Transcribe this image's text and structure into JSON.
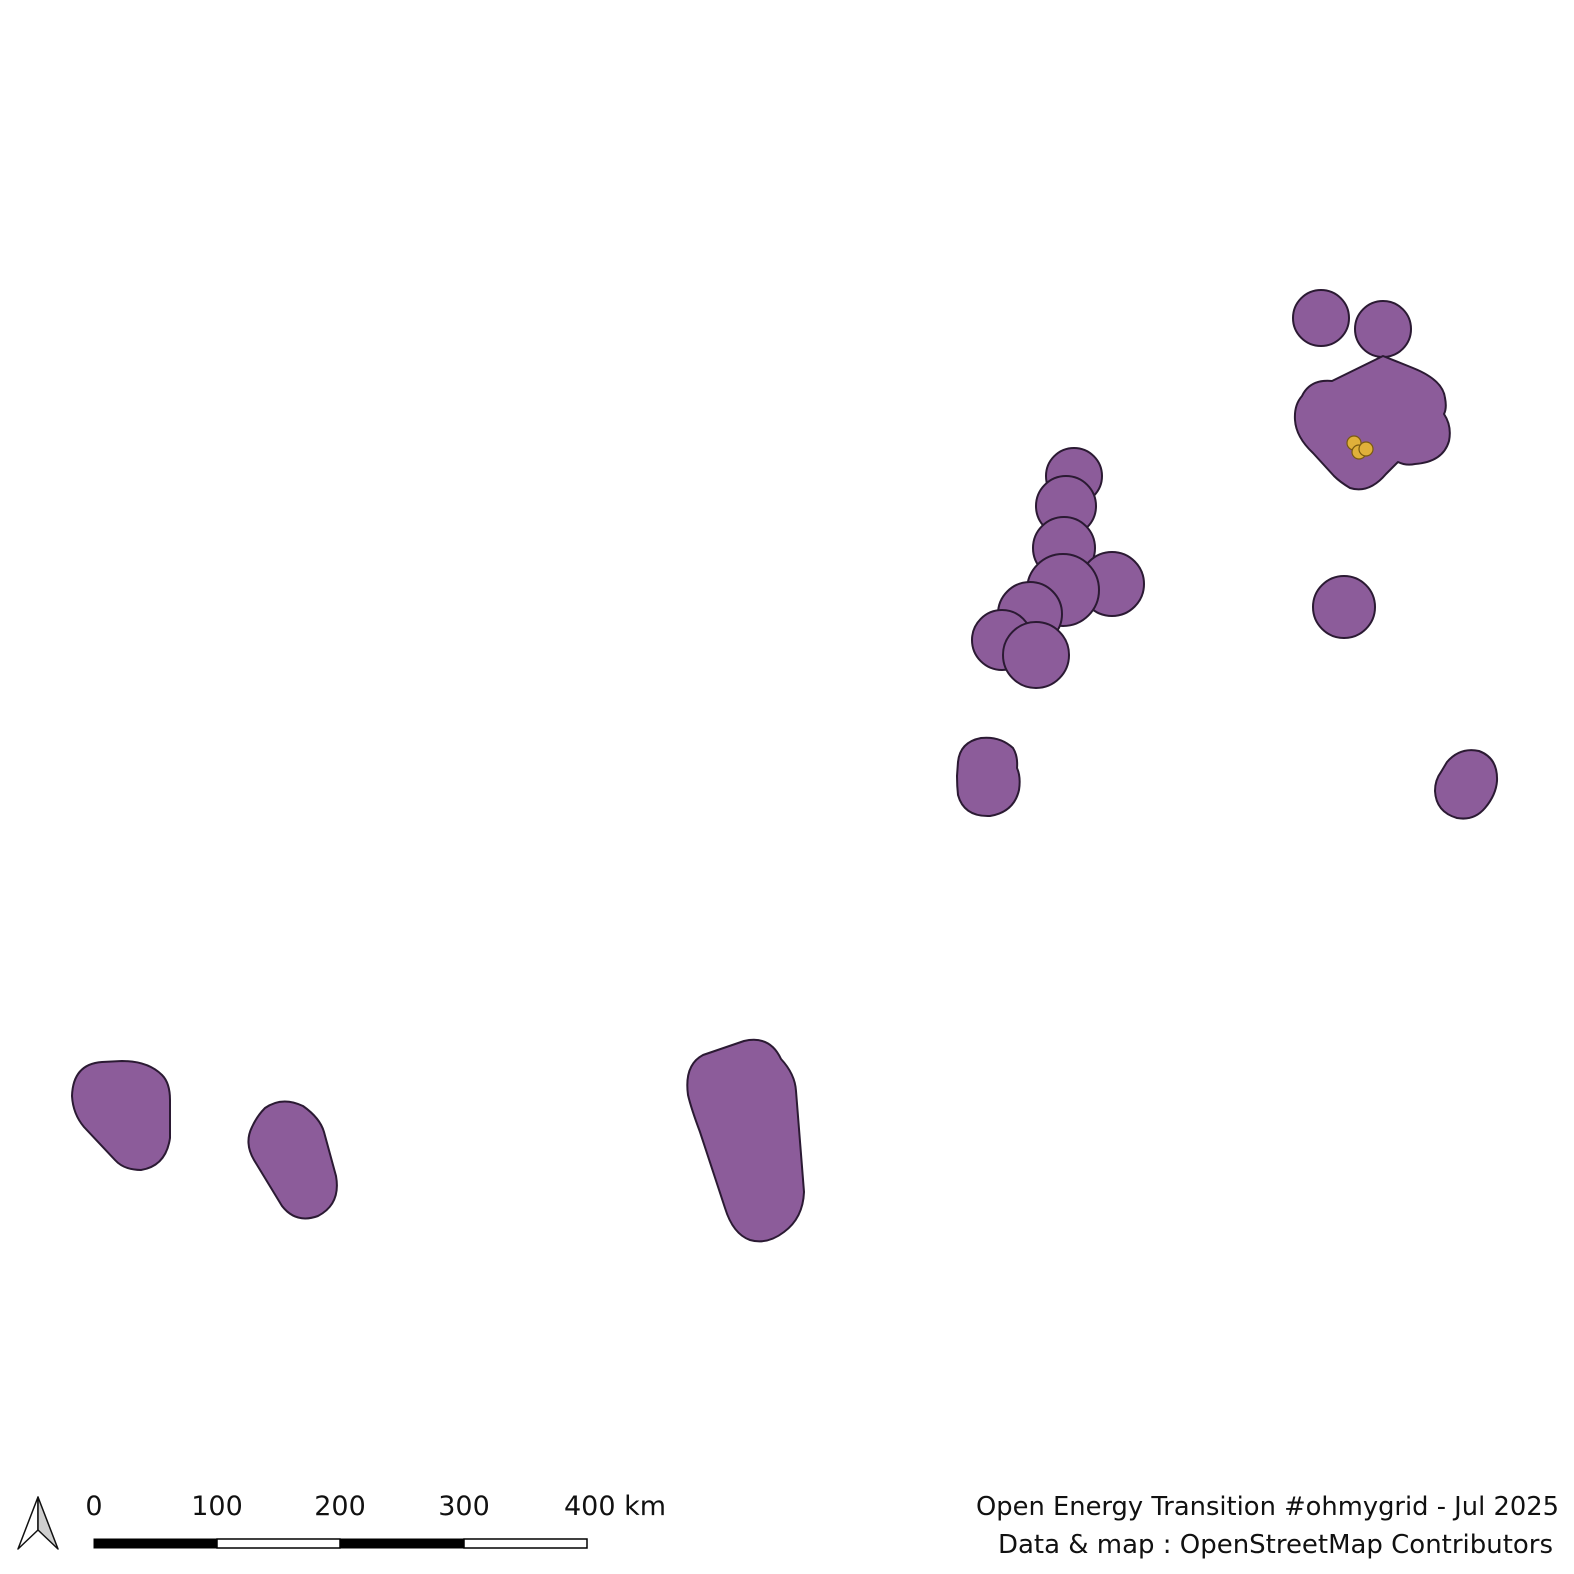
{
  "map": {
    "colors": {
      "background": "#ffffff",
      "region_fill": "#8c5c9a",
      "region_stroke": "#2b1a33",
      "site_fill": "#e0b03a"
    },
    "layers": [
      {
        "name": "coverage-areas",
        "style": "purple polygons"
      },
      {
        "name": "sites",
        "style": "yellow points"
      }
    ]
  },
  "north_arrow": {
    "icon": "north-arrow-icon"
  },
  "scale_bar": {
    "ticks": [
      "0",
      "100",
      "200",
      "300",
      "400 km"
    ],
    "unit": "km",
    "segment_length_km": 100
  },
  "credits": {
    "line1": "Open Energy Transition #ohmygrid - Jul 2025",
    "line2": "Data & map : OpenStreetMap Contributors"
  }
}
